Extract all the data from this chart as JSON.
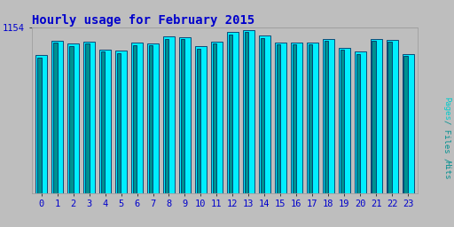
{
  "title": "Hourly usage for February 2015",
  "categories": [
    0,
    1,
    2,
    3,
    4,
    5,
    6,
    7,
    8,
    9,
    10,
    11,
    12,
    13,
    14,
    15,
    16,
    17,
    18,
    19,
    20,
    21,
    22,
    23
  ],
  "values_hits": [
    960,
    1060,
    1040,
    1055,
    1000,
    990,
    1045,
    1042,
    1090,
    1085,
    1020,
    1055,
    1120,
    1135,
    1095,
    1048,
    1050,
    1048,
    1075,
    1010,
    985,
    1072,
    1068,
    970
  ],
  "values_files": [
    940,
    1045,
    1025,
    1040,
    985,
    975,
    1030,
    1028,
    1075,
    1070,
    1005,
    1040,
    1105,
    1120,
    1080,
    1033,
    1035,
    1033,
    1060,
    995,
    970,
    1057,
    1053,
    955
  ],
  "bar_color_hits": "#00EEFF",
  "bar_color_files": "#009090",
  "bar_edge_color": "#003366",
  "background_color": "#BEBEBE",
  "plot_bg_color": "#BEBEBE",
  "title_color": "#0000CC",
  "tick_label_color": "#0000CC",
  "grid_color": "#AAAAAA",
  "ytick_label": "1154",
  "ylim_max": 1154,
  "title_fontsize": 10,
  "tick_fontsize": 7.5
}
